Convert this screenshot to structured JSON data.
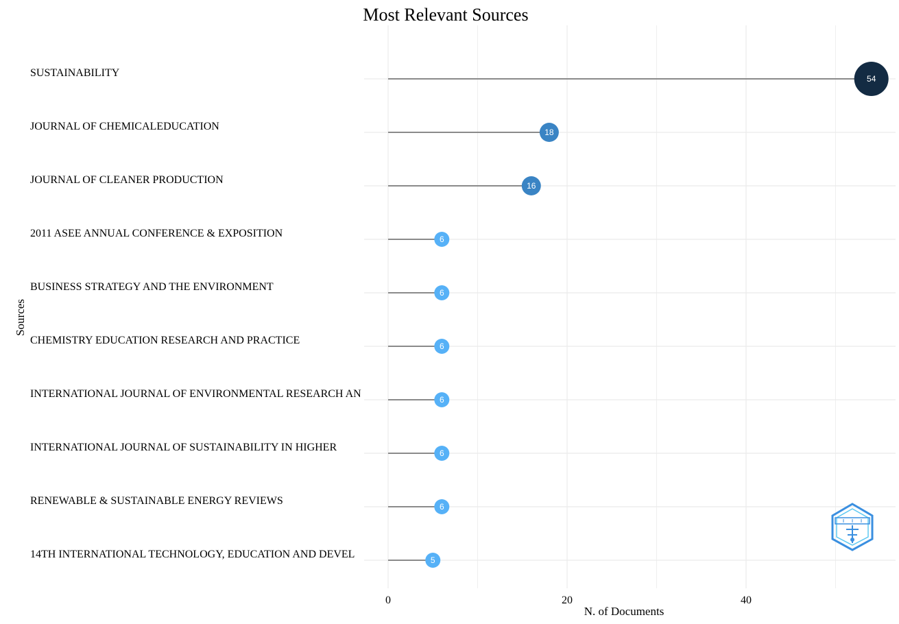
{
  "chart_data": {
    "type": "lollipop",
    "title": "Most Relevant Sources",
    "xlabel": "N. of Documents",
    "ylabel": "Sources",
    "xlim": [
      0,
      56
    ],
    "x_ticks": [
      0,
      20,
      40
    ],
    "grid": true,
    "categories": [
      "SUSTAINABILITY",
      "JOURNAL OF CHEMICALEDUCATION",
      "JOURNAL OF CLEANER PRODUCTION",
      "2011 ASEE ANNUAL CONFERENCE & EXPOSITION",
      "BUSINESS STRATEGY AND THE ENVIRONMENT",
      "CHEMISTRY EDUCATION RESEARCH AND PRACTICE",
      "INTERNATIONAL JOURNAL OF ENVIRONMENTAL RESEARCH AN",
      "INTERNATIONAL JOURNAL OF SUSTAINABILITY IN HIGHER",
      "RENEWABLE & SUSTAINABLE ENERGY REVIEWS",
      "14TH INTERNATIONAL TECHNOLOGY, EDUCATION AND DEVEL"
    ],
    "values": [
      54,
      18,
      16,
      6,
      6,
      6,
      6,
      6,
      6,
      5
    ],
    "data_labels": [
      "54",
      "18",
      "16",
      "6",
      "6",
      "6",
      "6",
      "6",
      "6",
      "5"
    ],
    "colors": {
      "high": "#132b43",
      "mid": "#3a84c4",
      "low": "#56b1f7",
      "stem": "#8a8a8a",
      "grid": "#ebebeb"
    }
  },
  "logo": {
    "icon": "bibliometrix-hexagon-logo",
    "color": "#3a8fe0"
  }
}
